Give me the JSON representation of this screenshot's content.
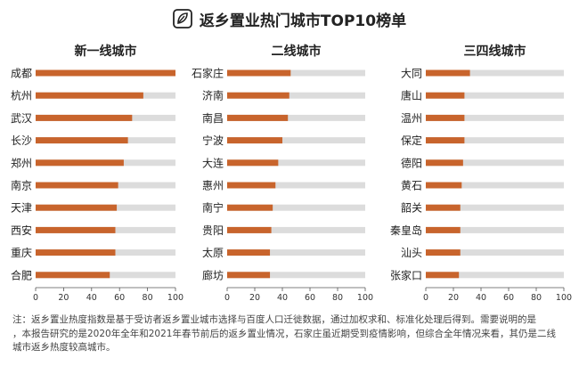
{
  "header": {
    "title": "返乡置业热门城市TOP10榜单",
    "logo_icon": "leaf-logo-icon"
  },
  "colors": {
    "bar": "#c8642c",
    "track": "#dcdcdc",
    "text": "#222222",
    "axis": "#555555"
  },
  "chart_data": [
    {
      "type": "bar",
      "orientation": "horizontal",
      "title": "新一线城市",
      "categories": [
        "成都",
        "杭州",
        "武汉",
        "长沙",
        "郑州",
        "南京",
        "天津",
        "西安",
        "重庆",
        "合肥"
      ],
      "values": [
        100,
        77,
        69,
        66,
        63,
        59,
        58,
        57,
        57,
        53
      ],
      "xlim": [
        0,
        100
      ],
      "xticks": [
        "0",
        "20",
        "40",
        "60",
        "80",
        "100"
      ]
    },
    {
      "type": "bar",
      "orientation": "horizontal",
      "title": "二线城市",
      "categories": [
        "石家庄",
        "济南",
        "南昌",
        "宁波",
        "大连",
        "惠州",
        "南宁",
        "贵阳",
        "太原",
        "廊坊"
      ],
      "values": [
        46,
        45,
        44,
        40,
        37,
        35,
        33,
        32,
        31,
        31
      ],
      "xlim": [
        0,
        100
      ],
      "xticks": [
        "0",
        "20",
        "40",
        "60",
        "80",
        "100"
      ]
    },
    {
      "type": "bar",
      "orientation": "horizontal",
      "title": "三四线城市",
      "categories": [
        "大同",
        "唐山",
        "温州",
        "保定",
        "德阳",
        "黄石",
        "韶关",
        "秦皇岛",
        "汕头",
        "张家口"
      ],
      "values": [
        32,
        28,
        28,
        28,
        27,
        26,
        25,
        25,
        25,
        24
      ],
      "xlim": [
        0,
        100
      ],
      "xticks": [
        "0",
        "20",
        "40",
        "60",
        "80",
        "100"
      ]
    }
  ],
  "footnote": {
    "line1": "注：返乡置业热度指数是基于受访者返乡置业城市选择与百度人口迁徙数据，通过加权求和、标准化处理后得到。需要说明的是",
    "line2": "，本报告研究的是2020年全年和2021年春节前后的返乡置业情况，石家庄虽近期受到疫情影响，但综合全年情况来看，其仍是二线",
    "line3": "城市返乡热度较高城市。"
  }
}
